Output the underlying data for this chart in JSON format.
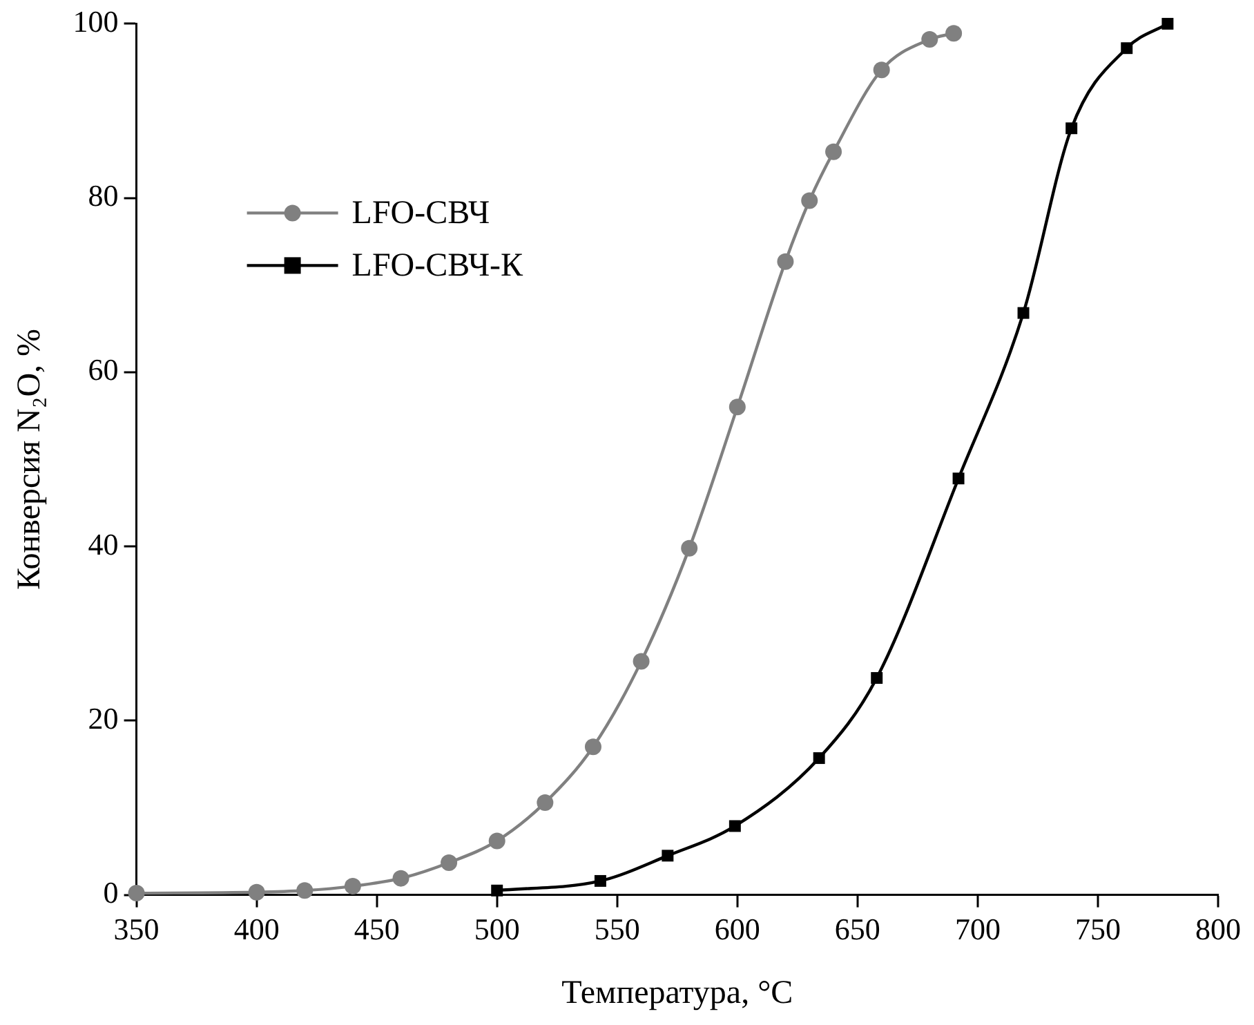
{
  "chart_data": {
    "type": "line",
    "xlabel": "Температура, °C",
    "ylabel": "Конверсия N₂O, %",
    "xlim": [
      350,
      800
    ],
    "xticks": [
      350,
      400,
      450,
      500,
      550,
      600,
      650,
      700,
      750,
      800
    ],
    "ylim": [
      0,
      100
    ],
    "yticks": [
      0,
      20,
      40,
      60,
      80,
      100
    ],
    "grid": false,
    "legend": "top left",
    "series": [
      {
        "name": "LFO-СВЧ",
        "color": "#808080",
        "marker": "circle",
        "x": [
          350,
          400,
          420,
          440,
          460,
          480,
          500,
          520,
          540,
          560,
          580,
          600,
          620,
          630,
          640,
          660,
          680,
          690
        ],
        "values": [
          0.2,
          0.3,
          0.5,
          1.0,
          1.9,
          3.7,
          6.2,
          10.6,
          17,
          26.8,
          39.8,
          56,
          72.7,
          79.7,
          85.3,
          94.7,
          98.2,
          98.9
        ]
      },
      {
        "name": "LFO-СВЧ-К",
        "color": "#000000",
        "marker": "square",
        "x": [
          500,
          543,
          571,
          599,
          634,
          658,
          692,
          719,
          739,
          762,
          779
        ],
        "values": [
          0.5,
          1.6,
          4.5,
          7.9,
          15.7,
          24.9,
          47.8,
          66.8,
          88,
          97.2,
          100
        ]
      }
    ]
  }
}
